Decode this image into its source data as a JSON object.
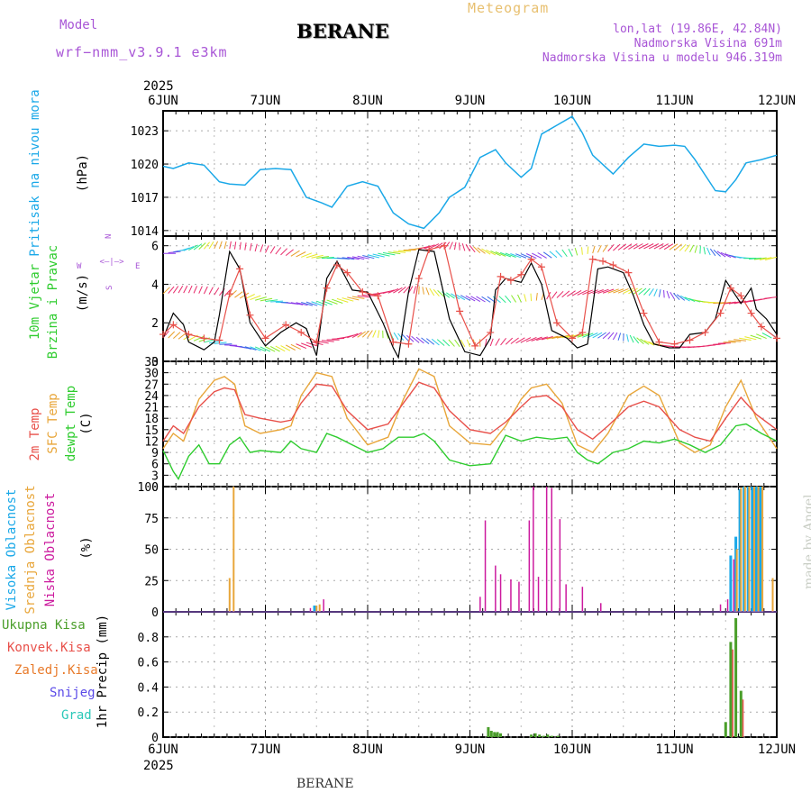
{
  "header": {
    "model_label": "Model",
    "model_name": "wrf−nmm_v3.9.1  e3km",
    "station": "BERANE",
    "product": "Meteogram",
    "lonlat": "lon,lat (19.86E, 42.84N)",
    "elevation": "Nadmorska Visina 691m",
    "model_elevation": "Nadmorska Visina u modelu 946.319m"
  },
  "footer": {
    "station": "BERANE",
    "watermark": "made by Angel"
  },
  "colors": {
    "pressure": "#1aa8e8",
    "temp2m": "#e8504a",
    "sfc": "#e8a63a",
    "dewpt": "#2ecc2e",
    "high_cloud": "#1aa8e8",
    "mid_cloud": "#e8a63a",
    "low_cloud": "#cc1a9e",
    "wind_obs": "#e8504a",
    "precip_total": "#4a9e2a",
    "precip_conv": "#e8504a",
    "precip_frozen": "#e87a2a",
    "snow": "#5a4ae8",
    "graupel": "#2ac8b8",
    "title_purple": "#a855d6",
    "meteogram": "#e8c070"
  },
  "chart_data": [
    {
      "id": "pressure",
      "type": "line",
      "ylabel_main": "Pritisak na nivou mora",
      "ylabel_unit": "(hPa)",
      "ylim": [
        1013.5,
        1024.8
      ],
      "yticks": [
        1014,
        1017,
        1020,
        1023
      ],
      "x_ticks": [
        "6JUN",
        "7JUN",
        "8JUN",
        "9JUN",
        "10JUN",
        "11JUN",
        "12JUN"
      ],
      "x_year": "2025",
      "series": [
        {
          "x": [
            0,
            0.1,
            0.25,
            0.4,
            0.55,
            0.65,
            0.8,
            0.95,
            1.1,
            1.25,
            1.4,
            1.55,
            1.65,
            1.8,
            1.95,
            2.1,
            2.25,
            2.4,
            2.55,
            2.7,
            2.8,
            2.95,
            3.1,
            3.25,
            3.35,
            3.5,
            3.6,
            3.7,
            3.85,
            4.0,
            4.1,
            4.2,
            4.4,
            4.55,
            4.7,
            4.85,
            5.0,
            5.1,
            5.2,
            5.4,
            5.5,
            5.6,
            5.7,
            5.85,
            6.0
          ],
          "values": [
            1019.8,
            1019.6,
            1020.1,
            1019.9,
            1018.4,
            1018.2,
            1018.1,
            1019.5,
            1019.6,
            1019.5,
            1017.0,
            1016.5,
            1016.1,
            1018.0,
            1018.4,
            1018.0,
            1015.6,
            1014.6,
            1014.2,
            1015.6,
            1017.0,
            1017.9,
            1020.6,
            1021.3,
            1020.1,
            1018.8,
            1019.6,
            1022.7,
            1023.5,
            1024.3,
            1022.8,
            1020.8,
            1019.1,
            1020.6,
            1021.8,
            1021.6,
            1021.7,
            1021.6,
            1020.4,
            1017.6,
            1017.5,
            1018.6,
            1020.1,
            1020.4,
            1020.8
          ]
        }
      ]
    },
    {
      "id": "wind",
      "type": "line",
      "ylabel_main": "10m Vjetar",
      "ylabel_sub": "Brzina i Pravac",
      "ylabel_unit": "(m/s)",
      "compass_labels": {
        "n": "N",
        "s": "S",
        "w": "W",
        "e": "E"
      },
      "ylim": [
        0,
        6.5
      ],
      "yticks": [
        0,
        2,
        4,
        6
      ],
      "series": [
        {
          "name": "speed",
          "x": [
            0,
            0.1,
            0.2,
            0.25,
            0.4,
            0.5,
            0.55,
            0.65,
            0.75,
            0.85,
            1.0,
            1.15,
            1.3,
            1.4,
            1.5,
            1.6,
            1.7,
            1.85,
            2.0,
            2.15,
            2.25,
            2.3,
            2.4,
            2.5,
            2.65,
            2.8,
            2.95,
            3.1,
            3.2,
            3.25,
            3.35,
            3.5,
            3.6,
            3.7,
            3.8,
            3.95,
            4.05,
            4.15,
            4.25,
            4.35,
            4.5,
            4.6,
            4.7,
            4.8,
            4.95,
            5.05,
            5.15,
            5.3,
            5.4,
            5.5,
            5.65,
            5.75,
            5.8,
            5.9,
            6.0
          ],
          "values": [
            1.2,
            2.5,
            1.9,
            1.0,
            0.6,
            1.0,
            2.4,
            5.7,
            4.8,
            2.0,
            0.8,
            1.5,
            2.0,
            1.7,
            0.3,
            4.3,
            5.2,
            3.7,
            3.6,
            2.0,
            0.7,
            0.2,
            3.6,
            5.8,
            5.7,
            2.2,
            0.5,
            0.3,
            1.2,
            3.7,
            4.3,
            4.1,
            5.1,
            4.0,
            1.6,
            1.2,
            0.7,
            0.9,
            4.8,
            4.9,
            4.6,
            3.4,
            1.9,
            0.9,
            0.7,
            0.7,
            1.4,
            1.5,
            2.2,
            4.2,
            3.0,
            3.8,
            2.7,
            2.2,
            1.4
          ]
        },
        {
          "name": "speed_alt",
          "x": [
            0,
            0.1,
            0.25,
            0.4,
            0.55,
            0.65,
            0.75,
            0.85,
            1.0,
            1.2,
            1.35,
            1.5,
            1.6,
            1.7,
            1.8,
            1.95,
            2.1,
            2.25,
            2.4,
            2.5,
            2.6,
            2.75,
            2.9,
            3.05,
            3.2,
            3.3,
            3.4,
            3.5,
            3.6,
            3.7,
            3.85,
            4.0,
            4.1,
            4.2,
            4.3,
            4.4,
            4.55,
            4.7,
            4.85,
            5.0,
            5.15,
            5.3,
            5.45,
            5.55,
            5.65,
            5.75,
            5.85,
            6.0
          ],
          "values": [
            1.4,
            1.9,
            1.4,
            1.2,
            1.1,
            3.5,
            4.8,
            2.4,
            1.2,
            1.9,
            1.5,
            1.0,
            3.8,
            5.0,
            4.6,
            3.6,
            3.4,
            1.0,
            0.9,
            4.3,
            5.8,
            6.0,
            2.6,
            0.8,
            1.5,
            4.4,
            4.2,
            4.5,
            5.3,
            4.9,
            2.0,
            1.2,
            1.5,
            5.3,
            5.2,
            5.0,
            4.6,
            2.5,
            1.0,
            0.9,
            1.1,
            1.5,
            2.5,
            3.8,
            3.4,
            2.5,
            1.8,
            1.2
          ]
        }
      ]
    },
    {
      "id": "temperature",
      "type": "line",
      "ylabel_a": "2m Temp",
      "ylabel_b": "SFC Temp",
      "ylabel_c": "dewpt Temp",
      "ylabel_unit": "(C)",
      "ylim": [
        0,
        33
      ],
      "yticks": [
        0,
        3,
        6,
        9,
        12,
        15,
        18,
        21,
        24,
        27,
        30,
        33
      ],
      "series": [
        {
          "name": "2m Temp",
          "x": [
            0,
            0.1,
            0.2,
            0.35,
            0.5,
            0.6,
            0.7,
            0.8,
            0.95,
            1.15,
            1.25,
            1.35,
            1.5,
            1.65,
            1.8,
            2.0,
            2.2,
            2.35,
            2.5,
            2.65,
            2.8,
            3.0,
            3.2,
            3.35,
            3.5,
            3.6,
            3.75,
            3.9,
            4.05,
            4.2,
            4.35,
            4.55,
            4.7,
            4.85,
            5.05,
            5.2,
            5.35,
            5.5,
            5.65,
            5.8,
            6.0
          ],
          "values": [
            12,
            16,
            14,
            21,
            25,
            26,
            25.5,
            19,
            18,
            17,
            17.5,
            22,
            27,
            26.5,
            20,
            15,
            16.5,
            22,
            27.5,
            26,
            20,
            15,
            14,
            17,
            21,
            23.5,
            24,
            21,
            15,
            12.5,
            16,
            21,
            22.5,
            21,
            15,
            13,
            12,
            18,
            23.5,
            19,
            15
          ]
        },
        {
          "name": "SFC Temp",
          "x": [
            0,
            0.1,
            0.2,
            0.35,
            0.5,
            0.6,
            0.7,
            0.8,
            0.95,
            1.15,
            1.25,
            1.35,
            1.5,
            1.65,
            1.8,
            2.0,
            2.2,
            2.35,
            2.5,
            2.65,
            2.8,
            3.0,
            3.2,
            3.35,
            3.5,
            3.6,
            3.75,
            3.9,
            4.05,
            4.2,
            4.35,
            4.55,
            4.7,
            4.85,
            5.05,
            5.2,
            5.35,
            5.5,
            5.65,
            5.8,
            6.0
          ],
          "values": [
            10,
            14,
            12,
            23,
            28,
            29,
            27,
            16,
            14,
            15,
            16,
            24,
            30,
            29,
            18,
            11,
            13,
            23,
            31,
            29,
            16,
            11.5,
            11,
            16,
            23,
            26,
            27,
            22,
            11,
            9,
            14,
            24,
            26.5,
            24,
            11.5,
            9,
            11,
            21,
            28,
            18,
            10
          ]
        },
        {
          "name": "dewpt Temp",
          "x": [
            0,
            0.1,
            0.15,
            0.25,
            0.35,
            0.45,
            0.55,
            0.65,
            0.75,
            0.85,
            0.95,
            1.15,
            1.25,
            1.35,
            1.5,
            1.6,
            1.7,
            1.85,
            2.0,
            2.15,
            2.3,
            2.45,
            2.55,
            2.65,
            2.8,
            3.0,
            3.2,
            3.35,
            3.5,
            3.65,
            3.8,
            3.95,
            4.05,
            4.15,
            4.25,
            4.4,
            4.55,
            4.7,
            4.85,
            5.0,
            5.15,
            5.3,
            5.45,
            5.6,
            5.7,
            5.85,
            6.0
          ],
          "values": [
            9.5,
            4,
            2,
            8,
            11,
            6,
            6,
            11,
            13,
            9,
            9.5,
            9,
            12,
            10,
            9,
            14,
            13,
            11,
            9,
            10,
            13,
            13,
            14,
            12,
            7,
            5.5,
            6,
            13.5,
            12,
            13,
            12.5,
            13,
            9,
            7,
            6,
            9,
            10,
            12,
            11.5,
            12.5,
            11,
            9,
            11,
            16,
            16.5,
            14,
            12
          ]
        }
      ]
    },
    {
      "id": "clouds",
      "type": "bar",
      "ylabel_a": "Visoka Oblacnost",
      "ylabel_b": "Srednja Oblacnost",
      "ylabel_c": "Niska Oblacnost",
      "ylabel_unit": "(%)",
      "ylim": [
        0,
        100
      ],
      "yticks": [
        0,
        25,
        50,
        75,
        100
      ],
      "series": [
        {
          "name": "Visoka Oblacnost",
          "x": [
            1.48,
            5.55,
            5.6,
            5.64,
            5.68,
            5.72,
            5.76,
            5.8,
            5.84
          ],
          "values": [
            5,
            45,
            60,
            98,
            100,
            100,
            100,
            100,
            100
          ]
        },
        {
          "name": "Srednja Oblacnost",
          "x": [
            0.65,
            0.69,
            1.5,
            1.53,
            5.61,
            5.65,
            5.69,
            5.73,
            5.78,
            5.82,
            5.86,
            5.96
          ],
          "values": [
            27,
            100,
            5,
            6,
            50,
            99,
            100,
            100,
            100,
            100,
            100,
            27
          ]
        },
        {
          "name": "Niska Oblacnost",
          "x": [
            1.44,
            1.57,
            3.1,
            3.15,
            3.25,
            3.3,
            3.4,
            3.48,
            3.58,
            3.62,
            3.67,
            3.75,
            3.8,
            3.88,
            3.94,
            4.1,
            4.28,
            5.45,
            5.52,
            5.58
          ],
          "values": [
            3,
            10,
            12,
            73,
            37,
            30,
            26,
            24,
            73,
            100,
            28,
            100,
            99,
            74,
            22,
            20,
            7,
            6,
            10,
            42
          ]
        }
      ]
    },
    {
      "id": "precip",
      "type": "bar",
      "legend": [
        "Ukupna Kisa",
        "Konvek.Kisa",
        "Zaledj.Kisa",
        "Snijeg",
        "Grad"
      ],
      "ylabel_unit": "1hr Precip (mm)",
      "ylim": [
        0,
        1.0
      ],
      "yticks": [
        0,
        0.2,
        0.4,
        0.6,
        0.8
      ],
      "series": [
        {
          "name": "Ukupna Kisa",
          "x": [
            3.18,
            3.21,
            3.24,
            3.27,
            3.3,
            3.6,
            3.64,
            3.68,
            3.72,
            3.76,
            3.8,
            3.86,
            5.5,
            5.55,
            5.6,
            5.65
          ],
          "values": [
            0.08,
            0.05,
            0.04,
            0.04,
            0.03,
            0.02,
            0.03,
            0.02,
            0.01,
            0.02,
            0.01,
            0.01,
            0.12,
            0.76,
            0.95,
            0.37
          ]
        },
        {
          "name": "Konvek.Kisa",
          "x": [
            5.57,
            5.67
          ],
          "values": [
            0.7,
            0.3
          ]
        }
      ]
    }
  ]
}
